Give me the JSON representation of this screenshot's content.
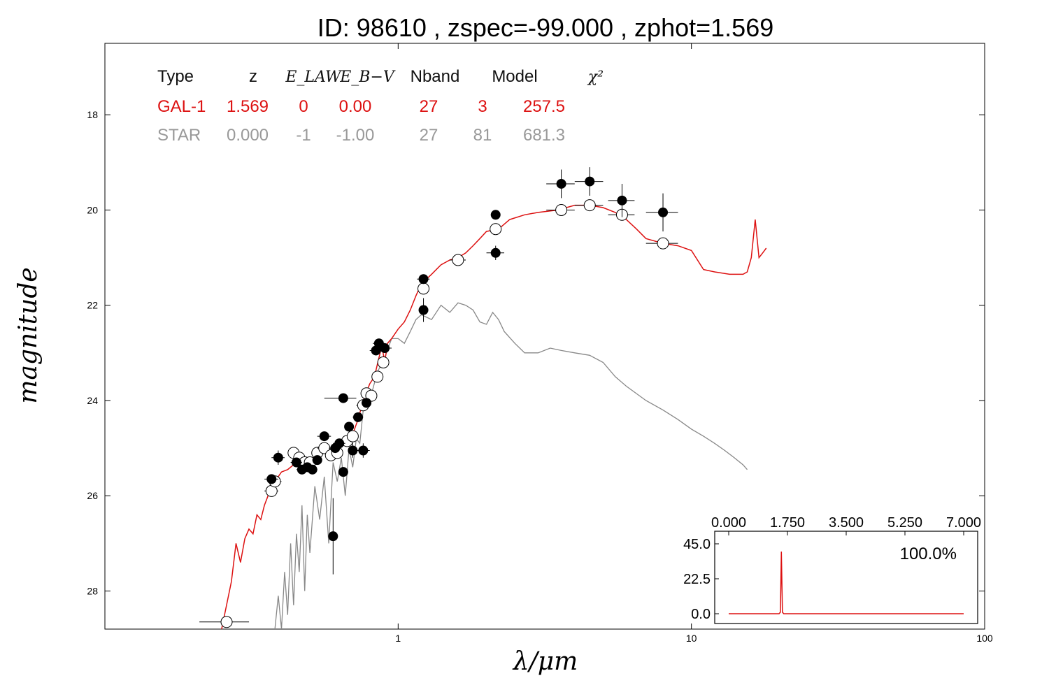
{
  "title": "ID:  98610 , zspec=-99.000 , zphot=1.569",
  "chart_data": [
    {
      "type": "scatter",
      "xlabel": "λ/μm",
      "ylabel": "magnitude",
      "xscale": "log",
      "xlim": [
        0.1,
        100
      ],
      "ylim": [
        28.8,
        16.5
      ],
      "x_ticks": [
        1,
        10,
        100
      ],
      "x_tick_labels": [
        "1",
        "10",
        "100"
      ],
      "y_ticks": [
        18,
        20,
        22,
        24,
        26,
        28
      ],
      "y_tick_labels": [
        "18",
        "20",
        "22",
        "24",
        "26",
        "28"
      ],
      "colors": {
        "model": "#dd1111",
        "star": "#888888",
        "observed": "#000000",
        "predicted": "#ffffff"
      },
      "table": {
        "headers": [
          "Type",
          "z",
          "E_LAW",
          "E_B−V",
          "Nband",
          "Model",
          "χ²"
        ],
        "rows": [
          {
            "color": "#dd1111",
            "values": [
              "GAL-1",
              "1.569",
              "0",
              "0.00",
              "27",
              "3",
              "257.5"
            ]
          },
          {
            "color": "#999999",
            "values": [
              "STAR",
              "0.000",
              "-1",
              "-1.00",
              "27",
              "81",
              "681.3"
            ]
          }
        ]
      },
      "observed": [
        {
          "x": 0.37,
          "y": 25.65,
          "xerr": [
            0.35,
            0.39
          ],
          "yerr": 0.1
        },
        {
          "x": 0.39,
          "y": 25.2,
          "xerr": [
            0.37,
            0.41
          ],
          "yerr": 0.15
        },
        {
          "x": 0.45,
          "y": 25.3,
          "xerr": [
            0.43,
            0.47
          ],
          "yerr": 0.1
        },
        {
          "x": 0.47,
          "y": 25.45,
          "xerr": [
            0.45,
            0.49
          ],
          "yerr": 0.1
        },
        {
          "x": 0.49,
          "y": 25.4,
          "xerr": [
            0.47,
            0.51
          ],
          "yerr": 0.1
        },
        {
          "x": 0.51,
          "y": 25.45,
          "xerr": [
            0.49,
            0.53
          ],
          "yerr": 0.1
        },
        {
          "x": 0.53,
          "y": 25.25,
          "xerr": [
            0.51,
            0.55
          ],
          "yerr": 0.1
        },
        {
          "x": 0.56,
          "y": 24.75,
          "xerr": [
            0.53,
            0.59
          ],
          "yerr": 0.1
        },
        {
          "x": 0.6,
          "y": 26.85,
          "xerr": [
            0.59,
            0.61
          ],
          "yerr": 0.8
        },
        {
          "x": 0.61,
          "y": 25.0,
          "xerr": [
            0.58,
            0.64
          ],
          "yerr": 0.1
        },
        {
          "x": 0.63,
          "y": 24.9,
          "xerr": [
            0.6,
            0.66
          ],
          "yerr": 0.1
        },
        {
          "x": 0.65,
          "y": 23.95,
          "xerr": [
            0.56,
            0.72
          ],
          "yerr": 0.1
        },
        {
          "x": 0.65,
          "y": 25.5,
          "xerr": [
            0.63,
            0.67
          ],
          "yerr": 0.1
        },
        {
          "x": 0.68,
          "y": 24.55,
          "xerr": [
            0.66,
            0.7
          ],
          "yerr": 0.1
        },
        {
          "x": 0.7,
          "y": 25.05,
          "xerr": [
            0.68,
            0.72
          ],
          "yerr": 0.15
        },
        {
          "x": 0.73,
          "y": 24.35,
          "xerr": [
            0.7,
            0.76
          ],
          "yerr": 0.1
        },
        {
          "x": 0.76,
          "y": 25.05,
          "xerr": [
            0.72,
            0.8
          ],
          "yerr": 0.15
        },
        {
          "x": 0.78,
          "y": 24.05,
          "xerr": [
            0.75,
            0.81
          ],
          "yerr": 0.1
        },
        {
          "x": 0.84,
          "y": 22.95,
          "xerr": [
            0.8,
            0.88
          ],
          "yerr": 0.1
        },
        {
          "x": 0.86,
          "y": 22.8,
          "xerr": [
            0.82,
            0.9
          ],
          "yerr": 0.1
        },
        {
          "x": 0.9,
          "y": 22.9,
          "xerr": [
            0.86,
            0.95
          ],
          "yerr": 0.1
        },
        {
          "x": 1.22,
          "y": 21.45,
          "xerr": [
            1.16,
            1.28
          ],
          "yerr": 0.1
        },
        {
          "x": 1.22,
          "y": 22.1,
          "xerr": [
            1.19,
            1.25
          ],
          "yerr": 0.25
        },
        {
          "x": 2.15,
          "y": 20.1,
          "xerr": [
            2.1,
            2.2
          ],
          "yerr": 0.1
        },
        {
          "x": 2.15,
          "y": 20.9,
          "xerr": [
            2.0,
            2.3
          ],
          "yerr": 0.15
        },
        {
          "x": 3.6,
          "y": 19.45,
          "xerr": [
            3.2,
            4.0
          ],
          "yerr": 0.3
        },
        {
          "x": 4.5,
          "y": 19.4,
          "xerr": [
            4.0,
            5.0
          ],
          "yerr": 0.3
        },
        {
          "x": 5.8,
          "y": 19.8,
          "xerr": [
            5.2,
            6.4
          ],
          "yerr": 0.35
        },
        {
          "x": 8.0,
          "y": 20.05,
          "xerr": [
            7.0,
            9.0
          ],
          "yerr": 0.4
        }
      ],
      "predicted": [
        {
          "x": 0.26,
          "y": 28.65,
          "xerr": [
            0.21,
            0.31
          ]
        },
        {
          "x": 0.37,
          "y": 25.9,
          "xerr": [
            0.35,
            0.39
          ]
        },
        {
          "x": 0.38,
          "y": 25.7,
          "xerr": [
            0.36,
            0.4
          ]
        },
        {
          "x": 0.44,
          "y": 25.1,
          "xerr": [
            0.42,
            0.46
          ]
        },
        {
          "x": 0.46,
          "y": 25.2,
          "xerr": [
            0.44,
            0.48
          ]
        },
        {
          "x": 0.48,
          "y": 25.3,
          "xerr": [
            0.46,
            0.5
          ]
        },
        {
          "x": 0.5,
          "y": 25.3,
          "xerr": [
            0.48,
            0.52
          ]
        },
        {
          "x": 0.53,
          "y": 25.1,
          "xerr": [
            0.51,
            0.55
          ]
        },
        {
          "x": 0.56,
          "y": 25.0,
          "xerr": [
            0.53,
            0.59
          ]
        },
        {
          "x": 0.59,
          "y": 25.15,
          "xerr": [
            0.57,
            0.61
          ]
        },
        {
          "x": 0.62,
          "y": 25.1,
          "xerr": [
            0.6,
            0.64
          ]
        },
        {
          "x": 0.67,
          "y": 24.85,
          "xerr": [
            0.64,
            0.7
          ]
        },
        {
          "x": 0.7,
          "y": 24.75,
          "xerr": [
            0.68,
            0.72
          ]
        },
        {
          "x": 0.76,
          "y": 24.1,
          "xerr": [
            0.72,
            0.8
          ]
        },
        {
          "x": 0.78,
          "y": 23.85,
          "xerr": [
            0.76,
            0.8
          ]
        },
        {
          "x": 0.81,
          "y": 23.9,
          "xerr": [
            0.78,
            0.84
          ]
        },
        {
          "x": 0.85,
          "y": 23.5,
          "xerr": [
            0.82,
            0.88
          ]
        },
        {
          "x": 0.89,
          "y": 23.2,
          "xerr": [
            0.86,
            0.92
          ]
        },
        {
          "x": 1.22,
          "y": 21.65,
          "xerr": [
            1.19,
            1.25
          ]
        },
        {
          "x": 1.6,
          "y": 21.05,
          "xerr": [
            1.5,
            1.7
          ]
        },
        {
          "x": 2.15,
          "y": 20.4,
          "xerr": [
            2.1,
            2.2
          ]
        },
        {
          "x": 3.6,
          "y": 20.0,
          "xerr": [
            3.2,
            4.0
          ]
        },
        {
          "x": 4.5,
          "y": 19.9,
          "xerr": [
            4.0,
            5.0
          ]
        },
        {
          "x": 5.8,
          "y": 20.1,
          "xerr": [
            5.2,
            6.4
          ]
        },
        {
          "x": 8.0,
          "y": 20.7,
          "xerr": [
            7.0,
            9.0
          ]
        }
      ],
      "model_gal": [
        [
          0.25,
          28.8
        ],
        [
          0.27,
          27.8
        ],
        [
          0.28,
          27.0
        ],
        [
          0.29,
          27.4
        ],
        [
          0.3,
          26.9
        ],
        [
          0.31,
          26.7
        ],
        [
          0.32,
          26.8
        ],
        [
          0.33,
          26.4
        ],
        [
          0.34,
          26.5
        ],
        [
          0.35,
          26.2
        ],
        [
          0.36,
          26.0
        ],
        [
          0.37,
          25.8
        ],
        [
          0.38,
          25.7
        ],
        [
          0.4,
          25.5
        ],
        [
          0.42,
          25.45
        ],
        [
          0.45,
          25.3
        ],
        [
          0.48,
          25.35
        ],
        [
          0.5,
          25.3
        ],
        [
          0.53,
          25.1
        ],
        [
          0.56,
          25.05
        ],
        [
          0.6,
          25.1
        ],
        [
          0.63,
          24.95
        ],
        [
          0.67,
          24.85
        ],
        [
          0.7,
          24.7
        ],
        [
          0.73,
          24.4
        ],
        [
          0.76,
          24.0
        ],
        [
          0.8,
          23.65
        ],
        [
          0.83,
          23.5
        ],
        [
          0.86,
          23.1
        ],
        [
          0.88,
          22.85
        ],
        [
          0.9,
          23.2
        ],
        [
          0.92,
          22.8
        ],
        [
          0.95,
          22.7
        ],
        [
          1.0,
          22.5
        ],
        [
          1.05,
          22.35
        ],
        [
          1.1,
          22.1
        ],
        [
          1.15,
          21.8
        ],
        [
          1.2,
          21.55
        ],
        [
          1.3,
          21.35
        ],
        [
          1.4,
          21.15
        ],
        [
          1.5,
          21.05
        ],
        [
          1.6,
          21.0
        ],
        [
          1.7,
          20.9
        ],
        [
          1.8,
          20.75
        ],
        [
          1.9,
          20.6
        ],
        [
          2.0,
          20.45
        ],
        [
          2.2,
          20.4
        ],
        [
          2.4,
          20.2
        ],
        [
          2.7,
          20.1
        ],
        [
          3.0,
          20.05
        ],
        [
          3.5,
          20.0
        ],
        [
          4.0,
          19.9
        ],
        [
          4.5,
          19.9
        ],
        [
          5.0,
          19.95
        ],
        [
          5.5,
          20.05
        ],
        [
          6.0,
          20.2
        ],
        [
          6.5,
          20.4
        ],
        [
          7.0,
          20.6
        ],
        [
          8.0,
          20.7
        ],
        [
          9.0,
          20.75
        ],
        [
          10.0,
          20.85
        ],
        [
          11.0,
          21.25
        ],
        [
          12.0,
          21.3
        ],
        [
          13.5,
          21.35
        ],
        [
          15.0,
          21.35
        ],
        [
          15.5,
          21.3
        ],
        [
          16.0,
          21.0
        ],
        [
          16.5,
          20.2
        ],
        [
          17.0,
          21.0
        ],
        [
          17.5,
          20.9
        ],
        [
          18.0,
          20.8
        ]
      ],
      "model_star": [
        [
          0.38,
          28.8
        ],
        [
          0.39,
          28.1
        ],
        [
          0.4,
          28.8
        ],
        [
          0.41,
          27.6
        ],
        [
          0.42,
          28.5
        ],
        [
          0.43,
          27.0
        ],
        [
          0.44,
          28.3
        ],
        [
          0.45,
          26.8
        ],
        [
          0.46,
          27.6
        ],
        [
          0.47,
          26.2
        ],
        [
          0.48,
          28.0
        ],
        [
          0.49,
          26.4
        ],
        [
          0.5,
          27.2
        ],
        [
          0.52,
          25.8
        ],
        [
          0.54,
          26.5
        ],
        [
          0.56,
          25.6
        ],
        [
          0.58,
          27.0
        ],
        [
          0.6,
          25.3
        ],
        [
          0.62,
          25.7
        ],
        [
          0.64,
          25.2
        ],
        [
          0.66,
          26.0
        ],
        [
          0.68,
          25.0
        ],
        [
          0.7,
          25.4
        ],
        [
          0.72,
          24.8
        ],
        [
          0.74,
          24.9
        ],
        [
          0.76,
          24.2
        ],
        [
          0.8,
          24.0
        ],
        [
          0.85,
          23.4
        ],
        [
          0.9,
          23.1
        ],
        [
          0.95,
          22.7
        ],
        [
          1.0,
          22.7
        ],
        [
          1.05,
          22.8
        ],
        [
          1.1,
          22.55
        ],
        [
          1.15,
          22.3
        ],
        [
          1.2,
          22.2
        ],
        [
          1.3,
          22.3
        ],
        [
          1.4,
          22.0
        ],
        [
          1.5,
          22.15
        ],
        [
          1.6,
          21.95
        ],
        [
          1.7,
          22.0
        ],
        [
          1.8,
          22.1
        ],
        [
          1.9,
          22.35
        ],
        [
          2.0,
          22.4
        ],
        [
          2.1,
          22.15
        ],
        [
          2.2,
          22.3
        ],
        [
          2.3,
          22.55
        ],
        [
          2.5,
          22.8
        ],
        [
          2.7,
          23.0
        ],
        [
          3.0,
          23.0
        ],
        [
          3.3,
          22.9
        ],
        [
          3.6,
          22.95
        ],
        [
          4.0,
          23.0
        ],
        [
          4.5,
          23.05
        ],
        [
          5.0,
          23.2
        ],
        [
          5.5,
          23.5
        ],
        [
          6.0,
          23.7
        ],
        [
          7.0,
          24.0
        ],
        [
          8.0,
          24.2
        ],
        [
          9.0,
          24.4
        ],
        [
          10.0,
          24.6
        ],
        [
          11.0,
          24.75
        ],
        [
          12.0,
          24.9
        ],
        [
          13.0,
          25.05
        ],
        [
          14.0,
          25.2
        ],
        [
          15.0,
          25.35
        ],
        [
          15.5,
          25.45
        ]
      ],
      "inset": {
        "type": "line",
        "xlim": [
          0,
          7
        ],
        "x_tick_labels": [
          "0.000",
          "1.750",
          "3.500",
          "5.250",
          "7.000"
        ],
        "y_tick_labels": [
          "0.0",
          "22.5",
          "45.0"
        ],
        "ylim": [
          -5,
          50
        ],
        "annotation": "100.0%",
        "pdz": [
          [
            0,
            0.0
          ],
          [
            1.5,
            0.0
          ],
          [
            1.54,
            1.0
          ],
          [
            1.569,
            40.0
          ],
          [
            1.6,
            1.0
          ],
          [
            1.64,
            0.0
          ],
          [
            7.0,
            0.0
          ]
        ]
      }
    }
  ]
}
